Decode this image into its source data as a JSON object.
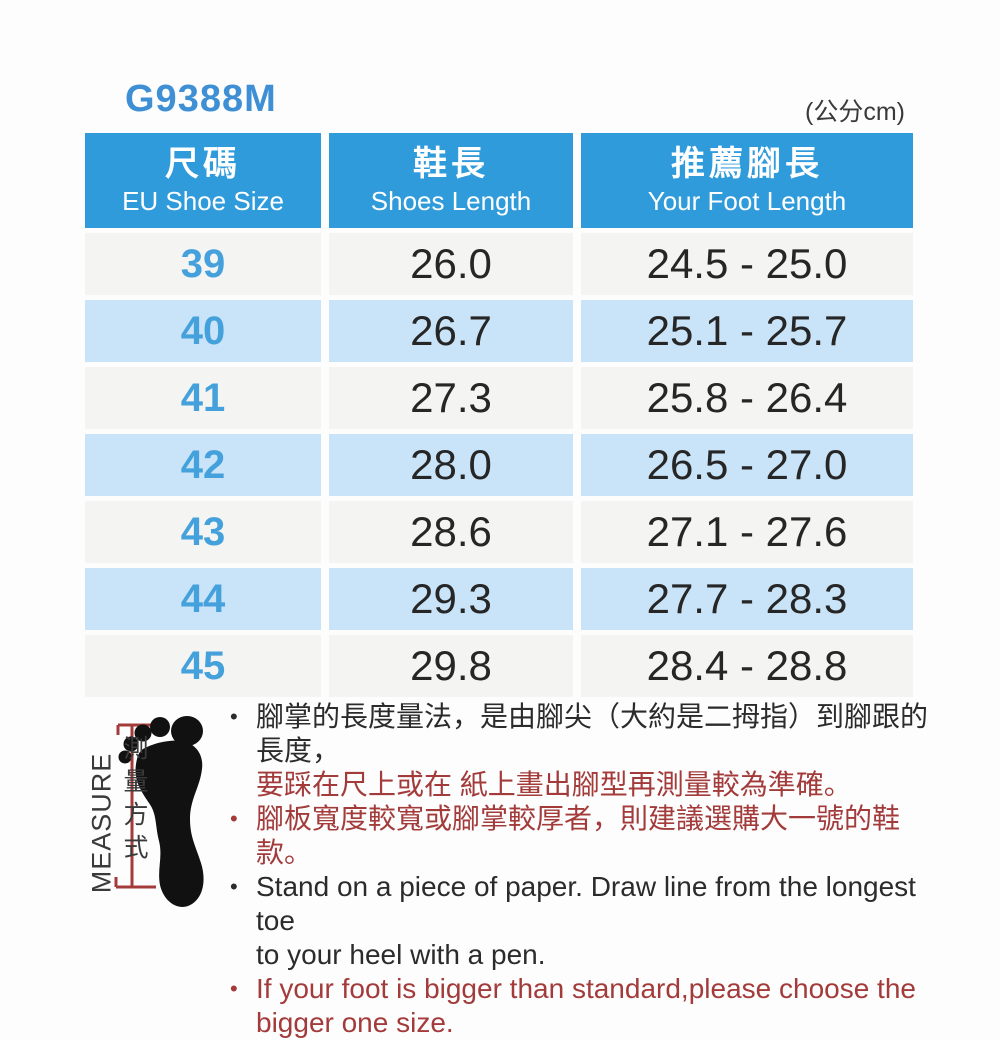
{
  "page": {
    "title": "G9388M",
    "unit_label": "(公分cm)"
  },
  "colors": {
    "header_blue": "#2f9bdb",
    "stripe_blue": "#c9e4f8",
    "row_light": "#f4f4f2",
    "size_blue": "#45a1dc",
    "title_blue": "#3e8fd4",
    "note_red": "#a33b3b",
    "text_dark": "#2b2b2b"
  },
  "table": {
    "columns": [
      {
        "zh": "尺碼",
        "en": "EU Shoe Size"
      },
      {
        "zh": "鞋長",
        "en": "Shoes Length"
      },
      {
        "zh": "推薦腳長",
        "en": "Your Foot Length"
      }
    ],
    "rows": [
      {
        "size": "39",
        "length": "26.0",
        "range": "24.5 - 25.0"
      },
      {
        "size": "40",
        "length": "26.7",
        "range": "25.1 - 25.7"
      },
      {
        "size": "41",
        "length": "27.3",
        "range": "25.8 - 26.4"
      },
      {
        "size": "42",
        "length": "28.0",
        "range": "26.5 - 27.0"
      },
      {
        "size": "43",
        "length": "28.6",
        "range": "27.1 - 27.6"
      },
      {
        "size": "44",
        "length": "29.3",
        "range": "27.7 - 28.3"
      },
      {
        "size": "45",
        "length": "29.8",
        "range": "28.4 - 28.8"
      }
    ]
  },
  "measure": {
    "label_en": "MEASURE",
    "label_zh": "測量方式"
  },
  "notes": {
    "items": [
      {
        "lines": [
          {
            "text": "腳掌的長度量法，是由腳尖（大約是二拇指）到腳跟的長度，",
            "color": "dark"
          },
          {
            "text": "要踩在尺上或在 紙上畫出腳型再測量較為準確。",
            "color": "red"
          }
        ]
      },
      {
        "lines": [
          {
            "text": "腳板寬度較寬或腳掌較厚者，則建議選購大一號的鞋款。",
            "color": "red"
          }
        ]
      },
      {
        "lines": [
          {
            "text": "Stand on a piece of paper. Draw line from the longest toe",
            "color": "dark"
          },
          {
            "text": "to your heel with a pen.",
            "color": "dark"
          }
        ]
      },
      {
        "lines": [
          {
            "text": "If your foot is bigger than standard,please choose the",
            "color": "red"
          },
          {
            "text": "bigger one size.",
            "color": "red"
          }
        ]
      }
    ]
  }
}
